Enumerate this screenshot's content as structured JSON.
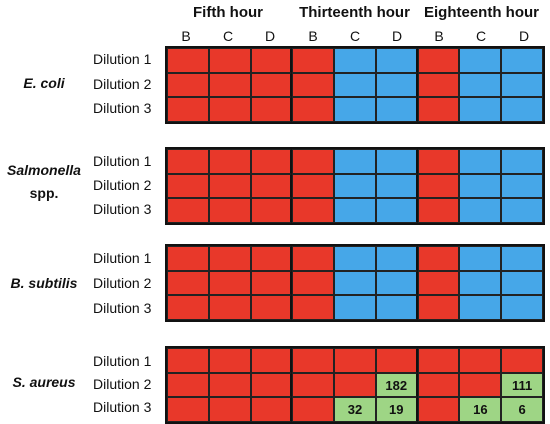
{
  "hours": [
    "Fifth hour",
    "Thirteenth hour",
    "Eighteenth hour"
  ],
  "columns": [
    "B",
    "C",
    "D",
    "B",
    "C",
    "D",
    "B",
    "C",
    "D"
  ],
  "dilutions": [
    "Dilution 1",
    "Dilution 2",
    "Dilution 3"
  ],
  "legend_colors": {
    "red": "#e8382a",
    "blue": "#46a7e8",
    "green": "#9ed585"
  },
  "organisms": [
    {
      "name": "E. coli",
      "rows": [
        [
          "r",
          "r",
          "r",
          "r",
          "b",
          "b",
          "r",
          "b",
          "b"
        ],
        [
          "r",
          "r",
          "r",
          "r",
          "b",
          "b",
          "r",
          "b",
          "b"
        ],
        [
          "r",
          "r",
          "r",
          "r",
          "b",
          "b",
          "r",
          "b",
          "b"
        ]
      ],
      "values": [
        [
          "",
          "",
          "",
          "",
          "",
          "",
          "",
          "",
          ""
        ],
        [
          "",
          "",
          "",
          "",
          "",
          "",
          "",
          "",
          ""
        ],
        [
          "",
          "",
          "",
          "",
          "",
          "",
          "",
          "",
          ""
        ]
      ]
    },
    {
      "name": "Salmonella",
      "name_suffix": "spp.",
      "rows": [
        [
          "r",
          "r",
          "r",
          "r",
          "b",
          "b",
          "r",
          "b",
          "b"
        ],
        [
          "r",
          "r",
          "r",
          "r",
          "b",
          "b",
          "r",
          "b",
          "b"
        ],
        [
          "r",
          "r",
          "r",
          "r",
          "b",
          "b",
          "r",
          "b",
          "b"
        ]
      ],
      "values": [
        [
          "",
          "",
          "",
          "",
          "",
          "",
          "",
          "",
          ""
        ],
        [
          "",
          "",
          "",
          "",
          "",
          "",
          "",
          "",
          ""
        ],
        [
          "",
          "",
          "",
          "",
          "",
          "",
          "",
          "",
          ""
        ]
      ]
    },
    {
      "name": "B. subtilis",
      "rows": [
        [
          "r",
          "r",
          "r",
          "r",
          "b",
          "b",
          "r",
          "b",
          "b"
        ],
        [
          "r",
          "r",
          "r",
          "r",
          "b",
          "b",
          "r",
          "b",
          "b"
        ],
        [
          "r",
          "r",
          "r",
          "r",
          "b",
          "b",
          "r",
          "b",
          "b"
        ]
      ],
      "values": [
        [
          "",
          "",
          "",
          "",
          "",
          "",
          "",
          "",
          ""
        ],
        [
          "",
          "",
          "",
          "",
          "",
          "",
          "",
          "",
          ""
        ],
        [
          "",
          "",
          "",
          "",
          "",
          "",
          "",
          "",
          ""
        ]
      ]
    },
    {
      "name": "S. aureus",
      "rows": [
        [
          "r",
          "r",
          "r",
          "r",
          "r",
          "r",
          "r",
          "r",
          "r"
        ],
        [
          "r",
          "r",
          "r",
          "r",
          "r",
          "g",
          "r",
          "r",
          "g"
        ],
        [
          "r",
          "r",
          "r",
          "r",
          "g",
          "g",
          "r",
          "g",
          "g"
        ]
      ],
      "values": [
        [
          "",
          "",
          "",
          "",
          "",
          "",
          "",
          "",
          ""
        ],
        [
          "",
          "",
          "",
          "",
          "",
          "182",
          "",
          "",
          "111"
        ],
        [
          "",
          "",
          "",
          "",
          "32",
          "19",
          "",
          "16",
          "6"
        ]
      ]
    }
  ]
}
